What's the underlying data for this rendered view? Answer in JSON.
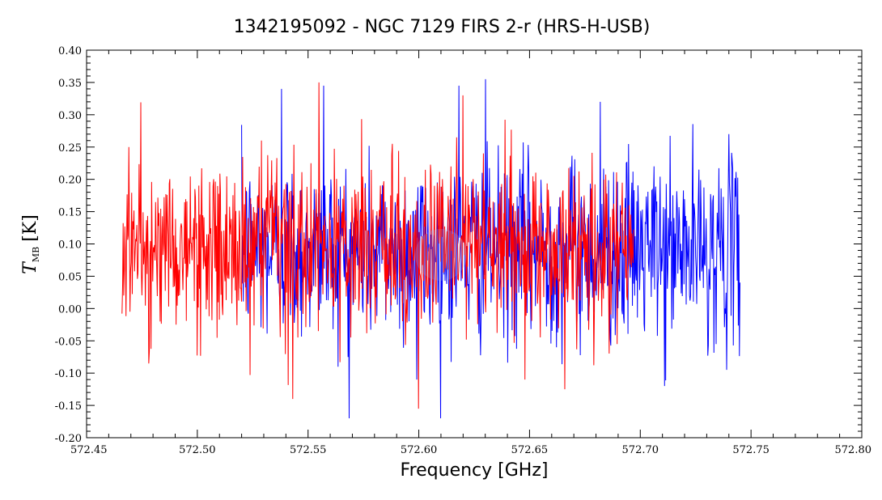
{
  "chart_data": {
    "type": "line",
    "title": "1342195092 - NGC 7129 FIRS 2-r (HRS-H-USB)",
    "xlabel": "Frequency [GHz]",
    "ylabel": "T",
    "ylabel_subscript": "MB",
    "ylabel_unit": "[K]",
    "xlim": [
      572.45,
      572.8
    ],
    "ylim": [
      -0.2,
      0.4
    ],
    "x_ticks": [
      "572.45",
      "572.50",
      "572.55",
      "572.60",
      "572.65",
      "572.70",
      "572.75",
      "572.80"
    ],
    "y_ticks": [
      "-0.20",
      "-0.15",
      "-0.10",
      "-0.05",
      "0.00",
      "0.05",
      "0.10",
      "0.15",
      "0.20",
      "0.25",
      "0.30",
      "0.35",
      "0.40"
    ],
    "grid": false,
    "series": [
      {
        "color": "#0000ff",
        "x_range": [
          572.52,
          572.745
        ],
        "mean": 0.09,
        "noise_sd": 0.07,
        "extremes": [
          {
            "x": 572.538,
            "y": 0.34
          },
          {
            "x": 572.557,
            "y": 0.345
          },
          {
            "x": 572.599,
            "y": 0.28
          },
          {
            "x": 572.618,
            "y": 0.345
          },
          {
            "x": 572.63,
            "y": 0.355
          },
          {
            "x": 572.682,
            "y": 0.32
          },
          {
            "x": 572.74,
            "y": 0.27
          },
          {
            "x": 572.711,
            "y": -0.12
          },
          {
            "x": 572.739,
            "y": -0.095
          },
          {
            "x": 572.599,
            "y": -0.11
          },
          {
            "x": 572.568,
            "y": -0.075
          }
        ]
      },
      {
        "color": "#ff0000",
        "x_range": [
          572.466,
          572.697
        ],
        "mean": 0.09,
        "noise_sd": 0.065,
        "extremes": [
          {
            "x": 572.469,
            "y": 0.25
          },
          {
            "x": 572.529,
            "y": 0.26
          },
          {
            "x": 572.588,
            "y": 0.255
          },
          {
            "x": 572.617,
            "y": 0.265
          },
          {
            "x": 572.62,
            "y": 0.33
          },
          {
            "x": 572.543,
            "y": -0.14
          },
          {
            "x": 572.6,
            "y": -0.155
          },
          {
            "x": 572.648,
            "y": -0.11
          },
          {
            "x": 572.666,
            "y": -0.125
          },
          {
            "x": 572.478,
            "y": -0.085
          }
        ]
      }
    ]
  }
}
